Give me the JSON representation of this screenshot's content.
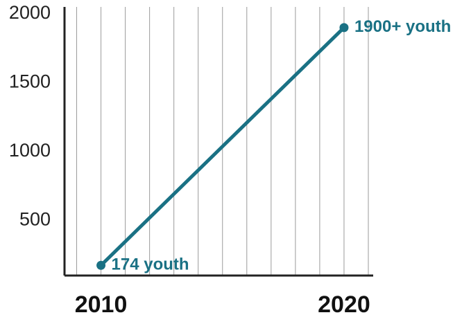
{
  "chart_data": {
    "type": "line",
    "x": [
      2010,
      2020
    ],
    "x_tick_labels": [
      "2010",
      "2020"
    ],
    "y_tick_labels": [
      "2000",
      "1500",
      "1000",
      "500"
    ],
    "y_ticks": [
      2000,
      1500,
      1000,
      500
    ],
    "ylim": [
      100,
      2050
    ],
    "xlim": [
      2008.5,
      2021.2
    ],
    "series": [
      {
        "values": [
          174,
          1900
        ]
      }
    ],
    "data_labels": [
      "174 youth",
      "1900+ youth"
    ],
    "grid": "vertical, one line per year",
    "line_color": "#1a7184"
  }
}
